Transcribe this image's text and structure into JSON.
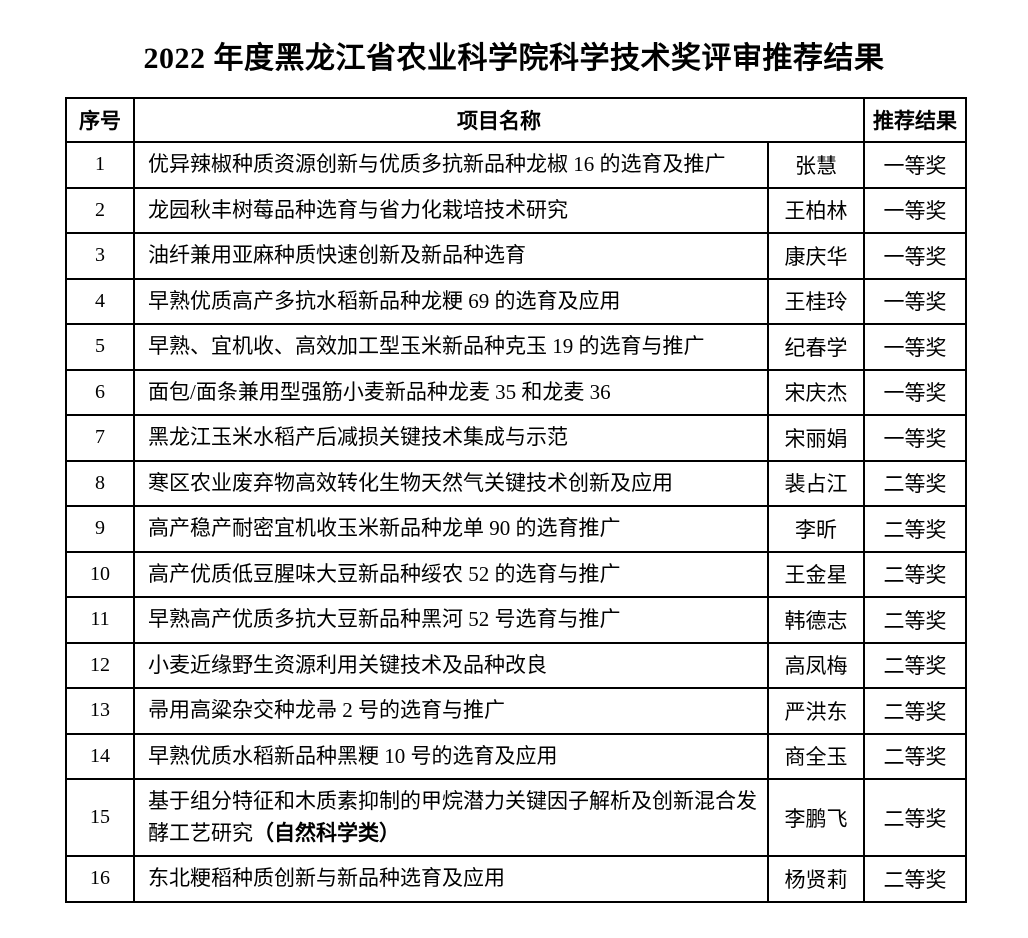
{
  "page": {
    "title": "2022 年度黑龙江省农业科学院科学技术奖评审推荐结果"
  },
  "table": {
    "headers": {
      "index": "序号",
      "project": "项目名称",
      "result": "推荐结果"
    },
    "rows": [
      {
        "index": "1",
        "project": "优异辣椒种质资源创新与优质多抗新品种龙椒 16 的选育及推广",
        "person": "张慧",
        "result": "一等奖"
      },
      {
        "index": "2",
        "project": "龙园秋丰树莓品种选育与省力化栽培技术研究",
        "person": "王柏林",
        "result": "一等奖"
      },
      {
        "index": "3",
        "project": "油纤兼用亚麻种质快速创新及新品种选育",
        "person": "康庆华",
        "result": "一等奖"
      },
      {
        "index": "4",
        "project": "早熟优质高产多抗水稻新品种龙粳 69 的选育及应用",
        "person": "王桂玲",
        "result": "一等奖"
      },
      {
        "index": "5",
        "project": "早熟、宜机收、高效加工型玉米新品种克玉 19 的选育与推广",
        "person": "纪春学",
        "result": "一等奖"
      },
      {
        "index": "6",
        "project": "面包/面条兼用型强筋小麦新品种龙麦 35 和龙麦 36",
        "person": "宋庆杰",
        "result": "一等奖"
      },
      {
        "index": "7",
        "project": "黑龙江玉米水稻产后减损关键技术集成与示范",
        "person": "宋丽娟",
        "result": "一等奖"
      },
      {
        "index": "8",
        "project": "寒区农业废弃物高效转化生物天然气关键技术创新及应用",
        "person": "裴占江",
        "result": "二等奖"
      },
      {
        "index": "9",
        "project": "高产稳产耐密宜机收玉米新品种龙单 90 的选育推广",
        "person": "李昕",
        "result": "二等奖"
      },
      {
        "index": "10",
        "project": "高产优质低豆腥味大豆新品种绥农 52 的选育与推广",
        "person": "王金星",
        "result": "二等奖"
      },
      {
        "index": "11",
        "project": "早熟高产优质多抗大豆新品种黑河 52 号选育与推广",
        "person": "韩德志",
        "result": "二等奖"
      },
      {
        "index": "12",
        "project": "小麦近缘野生资源利用关键技术及品种改良",
        "person": "高凤梅",
        "result": "二等奖"
      },
      {
        "index": "13",
        "project": "帚用高粱杂交种龙帚 2 号的选育与推广",
        "person": "严洪东",
        "result": "二等奖"
      },
      {
        "index": "14",
        "project": "早熟优质水稻新品种黑粳 10 号的选育及应用",
        "person": "商全玉",
        "result": "二等奖"
      },
      {
        "index": "15",
        "project": "基于组分特征和木质素抑制的甲烷潜力关键因子解析及创新混合发酵工艺研究",
        "project_bold": "（自然科学类）",
        "person": "李鹏飞",
        "result": "二等奖"
      },
      {
        "index": "16",
        "project": "东北粳稻种质创新与新品种选育及应用",
        "person": "杨贤莉",
        "result": "二等奖"
      }
    ]
  }
}
